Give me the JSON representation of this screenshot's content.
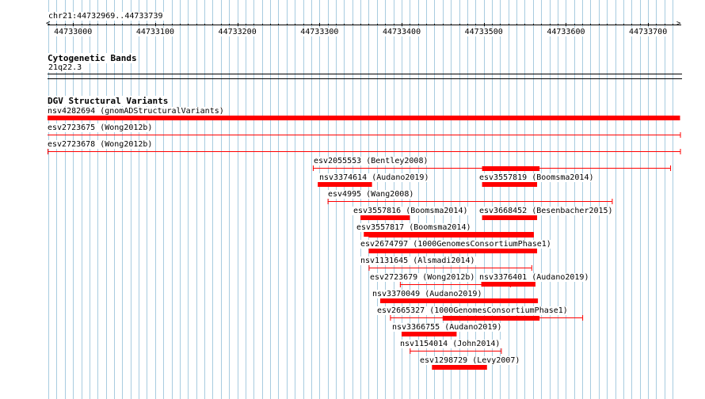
{
  "locus": "chr21:44732969..44733739",
  "ruler": {
    "ticks": [
      "44733000",
      "44733100",
      "44733200",
      "44733300",
      "44733400",
      "44733500",
      "44733600",
      "44733700"
    ]
  },
  "cytoband": {
    "title": "Cytogenetic Bands",
    "band": "21q22.3"
  },
  "dgv": {
    "title": "DGV Structural Variants",
    "features": [
      {
        "label": "nsv4282694 (gnomADStructuralVariants)",
        "start": 44732969,
        "end": 44733739,
        "style": "thick"
      },
      {
        "label": "esv2723675 (Wong2012b)",
        "start": 44732969,
        "end": 44733739,
        "style": "thin"
      },
      {
        "label": "esv2723678 (Wong2012b)",
        "start": 44732969,
        "end": 44733739,
        "style": "thin"
      },
      {
        "label": "esv2055553 (Bentley2008)",
        "start": 44733292,
        "end": 44733727,
        "style": "thin"
      },
      {
        "label": "nsv3374614 (Audano2019)",
        "start": 44733298,
        "end": 44733364,
        "style": "thick"
      },
      {
        "label": "esv3557819 (Boomsma2014)",
        "start": 44733498,
        "end": 44733565,
        "style": "thick"
      },
      {
        "label": "esv4995 (Wang2008)",
        "start": 44733310,
        "end": 44733656,
        "style": "thin"
      },
      {
        "label": "esv3557816 (Boomsma2014)",
        "start": 44733350,
        "end": 44733410,
        "style": "thick"
      },
      {
        "label": "esv3668452 (Besenbacher2015)",
        "start": 44733498,
        "end": 44733565,
        "style": "thick"
      },
      {
        "label": "esv3557817 (Boomsma2014)",
        "start": 44733354,
        "end": 44733561,
        "style": "thick"
      },
      {
        "label": "esv2674797 (1000GenomesConsortiumPhase1)",
        "start": 44733360,
        "end": 44733565,
        "style": "thick"
      },
      {
        "label": "nsv1131645 (Alsmadi2014)",
        "start": 44733360,
        "end": 44733558,
        "style": "thin"
      },
      {
        "label": "esv2723679 (Wong2012b)",
        "start": 44733398,
        "end": 44733532,
        "style": "thin"
      },
      {
        "label": "nsv3376401 (Audano2019)",
        "start": 44733497,
        "end": 44733563,
        "style": "thick"
      },
      {
        "label": "nsv3370049 (Audano2019)",
        "start": 44733374,
        "end": 44733566,
        "style": "thick"
      },
      {
        "label": "esv2665327 (1000GenomesConsortiumPhase1)",
        "start": 44733386,
        "end": 44733620,
        "style": "thin"
      },
      {
        "label": "nsv3366755 (Audano2019)",
        "start": 44733400,
        "end": 44733467,
        "style": "thick"
      },
      {
        "label": "nsv1154014 (John2014)",
        "start": 44733410,
        "end": 44733521,
        "style": "thin"
      },
      {
        "label": "esv1298729 (Levy2007)",
        "start": 44733437,
        "end": 44733504,
        "style": "thick"
      }
    ]
  },
  "colors": {
    "feature": "#ff0000",
    "grid": "#a8cce0",
    "axis": "#000000"
  }
}
